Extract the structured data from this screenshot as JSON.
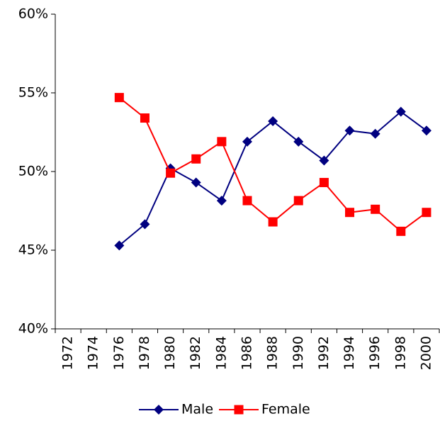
{
  "chart_data": {
    "type": "line",
    "categories": [
      "1972",
      "1974",
      "1976",
      "1978",
      "1980",
      "1982",
      "1984",
      "1986",
      "1988",
      "1990",
      "1992",
      "1994",
      "1996",
      "1998",
      "2000"
    ],
    "series": [
      {
        "name": "Male",
        "color": "#000080",
        "marker": "diamond",
        "values": [
          null,
          null,
          45.3,
          46.65,
          50.2,
          49.3,
          48.15,
          51.9,
          53.2,
          51.9,
          50.7,
          52.6,
          52.4,
          53.8,
          52.6
        ]
      },
      {
        "name": "Female",
        "color": "#ff0000",
        "marker": "square",
        "values": [
          null,
          null,
          54.7,
          53.4,
          49.9,
          50.8,
          51.9,
          48.15,
          46.8,
          48.15,
          49.3,
          47.4,
          47.6,
          46.2,
          47.4
        ]
      }
    ],
    "ylim": [
      40,
      60
    ],
    "yticks": [
      {
        "value": 40,
        "label": "40%"
      },
      {
        "value": 45,
        "label": "45%"
      },
      {
        "value": 50,
        "label": "50%"
      },
      {
        "value": 55,
        "label": "55%"
      },
      {
        "value": 60,
        "label": "60%"
      }
    ],
    "grid": false,
    "legend": "bottom"
  }
}
